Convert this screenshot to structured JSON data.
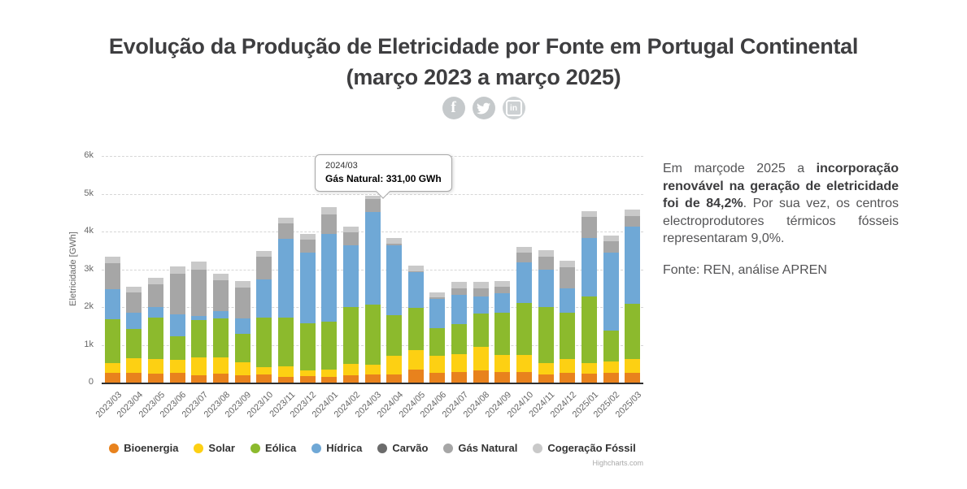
{
  "title": {
    "line1": "Evolução da Produção de Eletricidade por Fonte em Portugal Continental",
    "line2": "(março 2023 a março 2025)"
  },
  "social": {
    "facebook": "f",
    "linkedin": "in"
  },
  "sidebar": {
    "paragraph_parts": [
      {
        "text": "Em marçode 2025 a ",
        "bold": false
      },
      {
        "text": "incorporação renovável na geração de eletricidade foi de 84,2%",
        "bold": true
      },
      {
        "text": ". Por sua vez, os centros electroprodutores térmicos fósseis representaram 9,0%.",
        "bold": false
      }
    ],
    "source": "Fonte: REN, análise APREN"
  },
  "credit": "Highcharts.com",
  "chart_data": {
    "type": "bar",
    "stacked": true,
    "ylabel": "Eletricidade [GWh]",
    "xlabel": "",
    "ylim": [
      0,
      6000
    ],
    "yticks": [
      0,
      1000,
      2000,
      3000,
      4000,
      5000,
      6000
    ],
    "ytick_labels": [
      "0",
      "1k",
      "2k",
      "3k",
      "4k",
      "5k",
      "6k"
    ],
    "grid": "dashed-horizontal",
    "legend_position": "bottom",
    "categories": [
      "2023/03",
      "2023/04",
      "2023/05",
      "2023/06",
      "2023/07",
      "2023/08",
      "2023/09",
      "2023/10",
      "2023/11",
      "2023/12",
      "2024/01",
      "2024/02",
      "2024/03",
      "2024/04",
      "2024/05",
      "2024/06",
      "2024/07",
      "2024/08",
      "2024/09",
      "2024/10",
      "2024/11",
      "2024/12",
      "2025/01",
      "2025/02",
      "2025/03"
    ],
    "series": [
      {
        "name": "Bioenergia",
        "color": "#e8821d",
        "values": [
          260,
          250,
          230,
          260,
          200,
          240,
          190,
          220,
          150,
          180,
          160,
          200,
          220,
          220,
          340,
          250,
          290,
          320,
          270,
          280,
          210,
          250,
          240,
          250,
          250
        ]
      },
      {
        "name": "Solar",
        "color": "#fdd013",
        "values": [
          260,
          390,
          400,
          350,
          460,
          420,
          340,
          180,
          280,
          140,
          190,
          300,
          260,
          480,
          520,
          450,
          460,
          620,
          470,
          460,
          300,
          380,
          280,
          310,
          380
        ]
      },
      {
        "name": "Eólica",
        "color": "#8cba2d",
        "values": [
          1150,
          780,
          1090,
          620,
          990,
          1040,
          770,
          1320,
          1290,
          1240,
          1260,
          1490,
          1590,
          1090,
          1120,
          750,
          800,
          880,
          1110,
          1370,
          1500,
          1220,
          1750,
          820,
          1460
        ]
      },
      {
        "name": "Hídrica",
        "color": "#6fa8d6",
        "values": [
          810,
          430,
          280,
          570,
          110,
          190,
          390,
          1010,
          2090,
          1880,
          2320,
          1640,
          2450,
          1840,
          950,
          770,
          770,
          470,
          510,
          1080,
          970,
          640,
          1550,
          2070,
          2050
        ]
      },
      {
        "name": "Carvão",
        "color": "#6b6b6b",
        "values": [
          0,
          0,
          0,
          0,
          0,
          0,
          0,
          0,
          0,
          0,
          0,
          0,
          0,
          0,
          0,
          0,
          0,
          0,
          0,
          0,
          0,
          0,
          0,
          0,
          0
        ]
      },
      {
        "name": "Gás Natural",
        "color": "#a6a6a6",
        "values": [
          680,
          540,
          600,
          1090,
          1240,
          810,
          830,
          600,
          410,
          340,
          530,
          340,
          331,
          50,
          20,
          30,
          180,
          210,
          180,
          250,
          360,
          570,
          560,
          290,
          270
        ]
      },
      {
        "name": "Cogeração Fóssil",
        "color": "#c9c9c9",
        "values": [
          180,
          150,
          180,
          190,
          210,
          180,
          170,
          160,
          150,
          150,
          180,
          160,
          100,
          160,
          140,
          140,
          160,
          160,
          140,
          160,
          170,
          170,
          160,
          150,
          170
        ]
      }
    ],
    "tooltip": {
      "header": "2024/03",
      "body": "Gás Natural: 331,00 GWh",
      "target_category": "2024/03"
    }
  }
}
